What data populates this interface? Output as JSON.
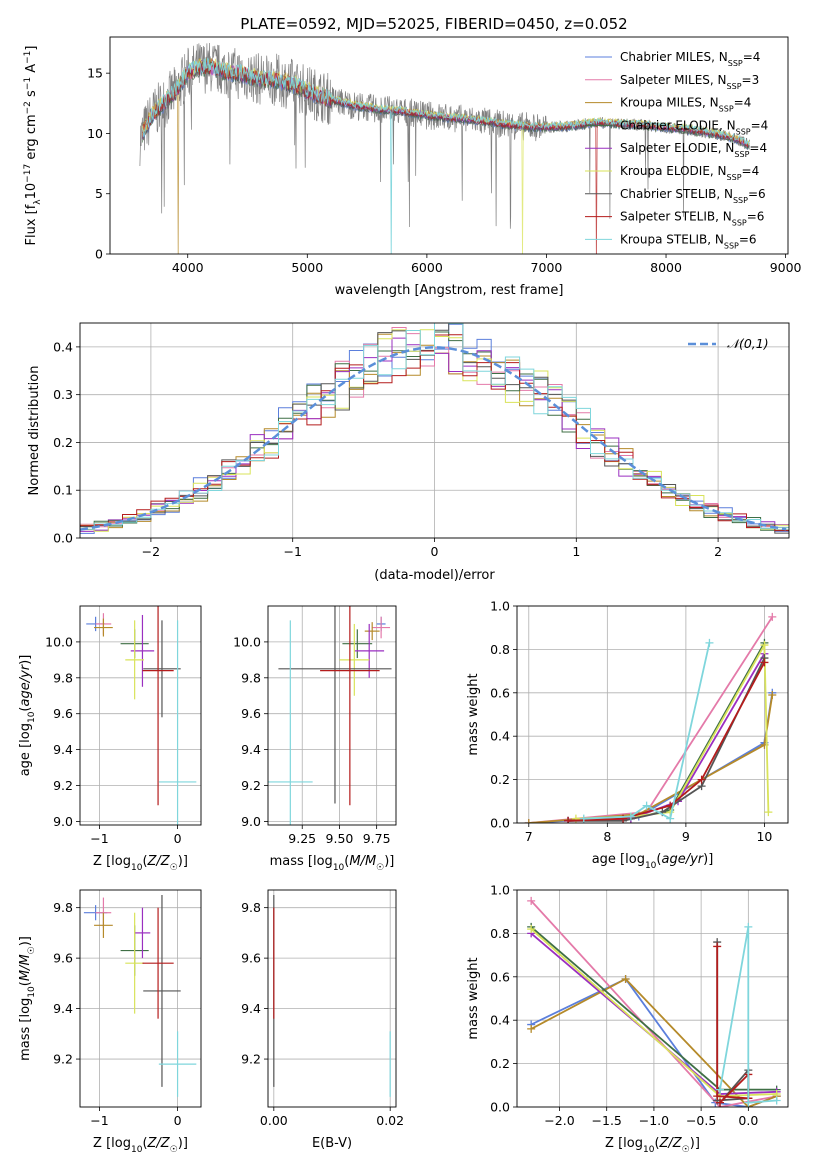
{
  "figure_title": "PLATE=0592, MJD=52025, FIBERID=0450, z=0.052",
  "models": [
    {
      "label": "Chabrier MILES",
      "nssp": "4",
      "color": "#5b7fdc"
    },
    {
      "label": "Salpeter MILES",
      "nssp": "3",
      "color": "#e47aa9"
    },
    {
      "label": "Kroupa MILES",
      "nssp": "4",
      "color": "#b58a2a"
    },
    {
      "label": "Chabrier ELODIE",
      "nssp": "4",
      "color": "#3f6f45"
    },
    {
      "label": "Salpeter ELODIE",
      "nssp": "4",
      "color": "#9a2fc0"
    },
    {
      "label": "Kroupa ELODIE",
      "nssp": "4",
      "color": "#d9e35a"
    },
    {
      "label": "Chabrier STELIB",
      "nssp": "6",
      "color": "#555555"
    },
    {
      "label": "Salpeter STELIB",
      "nssp": "6",
      "color": "#b41c1c"
    },
    {
      "label": "Kroupa STELIB",
      "nssp": "6",
      "color": "#7fd6dc"
    }
  ],
  "extra_colors": {
    "data_line": "#808080",
    "orange": "#e07a22",
    "green": "#8dc63f",
    "gaussian": "#5b8fd9"
  },
  "chart_data": [
    {
      "id": "spectrum",
      "type": "line",
      "xlabel": "wavelength [Angstrom, rest frame]",
      "ylabel": "Flux [f_λ10^-17 erg cm^-2 s^-1 A^-1]",
      "xlim": [
        3350,
        9020
      ],
      "ylim": [
        0,
        18
      ],
      "xticks": [
        "4000",
        "5000",
        "6000",
        "7000",
        "8000",
        "9000"
      ],
      "yticks": [
        "0",
        "5",
        "10",
        "15"
      ],
      "grid": false,
      "legend": "top-right",
      "continuum_x": [
        3600,
        3700,
        3800,
        3900,
        4000,
        4100,
        4200,
        4300,
        4400,
        4500,
        4600,
        4700,
        4800,
        4900,
        5000,
        5200,
        5400,
        5600,
        5800,
        6000,
        6200,
        6400,
        6600,
        6800,
        7000,
        7200,
        7400,
        7600,
        7800,
        8000,
        8200,
        8400,
        8600,
        8700
      ],
      "continuum_y": [
        9.5,
        11.5,
        12.5,
        13.5,
        15.0,
        15.5,
        15.5,
        15.2,
        15.0,
        14.8,
        14.5,
        14.5,
        14.3,
        14.0,
        13.5,
        12.8,
        12.3,
        12.0,
        11.8,
        11.5,
        11.3,
        11.1,
        10.8,
        10.6,
        10.5,
        10.6,
        10.9,
        10.8,
        10.7,
        10.5,
        10.3,
        10.0,
        9.5,
        9.0
      ]
    },
    {
      "id": "residuals",
      "type": "line",
      "xlabel": "(data-model)/error",
      "ylabel": "Normed distribution",
      "xlim": [
        -2.5,
        2.5
      ],
      "ylim": [
        0,
        0.45
      ],
      "xticks": [
        "−2",
        "−1",
        "0",
        "1",
        "2"
      ],
      "yticks": [
        "0.0",
        "0.1",
        "0.2",
        "0.3",
        "0.4"
      ],
      "grid": true,
      "legend": "top-right",
      "legend_label": "𝒩(0,1)",
      "gaussian": {
        "mu": 0,
        "sigma": 1
      }
    },
    {
      "id": "z-age",
      "type": "scatter",
      "xlabel": "Z [log10(Z/Z☉)]",
      "ylabel": "age [log10(age/yr)]",
      "xlim": [
        -1.25,
        0.3
      ],
      "ylim": [
        8.98,
        10.2
      ],
      "xticks": [
        "−1",
        "0"
      ],
      "yticks": [
        "9.0",
        "9.2",
        "9.4",
        "9.6",
        "9.8",
        "10.0"
      ],
      "points": [
        {
          "model": 0,
          "x": -1.05,
          "y": 10.1,
          "xerr": 0.12,
          "yerr": 0.04
        },
        {
          "model": 1,
          "x": -0.95,
          "y": 10.1,
          "xerr": 0.1,
          "yerr": 0.06
        },
        {
          "model": 2,
          "x": -0.95,
          "y": 10.08,
          "xerr": 0.12,
          "yerr": 0.05
        },
        {
          "model": 3,
          "x": -0.55,
          "y": 9.99,
          "xerr": 0.18,
          "yerr": 0.08
        },
        {
          "model": 4,
          "x": -0.45,
          "y": 9.95,
          "xerr": 0.15,
          "yerr": 0.2
        },
        {
          "model": 5,
          "x": -0.55,
          "y": 9.9,
          "xerr": 0.12,
          "yerr": 0.22
        },
        {
          "model": 6,
          "x": -0.2,
          "y": 9.85,
          "xerr": 0.24,
          "yerr": 0.27
        },
        {
          "model": 7,
          "x": -0.25,
          "y": 9.84,
          "xerr": 0.2,
          "yerr": 0.75
        },
        {
          "model": 8,
          "x": 0.0,
          "y": 9.22,
          "xerr": 0.24,
          "yerr": 0.9
        }
      ]
    },
    {
      "id": "mass-age",
      "type": "scatter",
      "xlabel": "mass [log10(M/M☉)]",
      "ylabel": "",
      "xlim": [
        9.02,
        9.88
      ],
      "ylim": [
        8.98,
        10.2
      ],
      "xticks": [
        "9.25",
        "9.50",
        "9.75"
      ],
      "yticks": [
        "9.0",
        "9.2",
        "9.4",
        "9.6",
        "9.8",
        "10.0"
      ],
      "points": [
        {
          "model": 0,
          "x": 9.78,
          "y": 10.1,
          "xerr": 0.03,
          "yerr": 0.04
        },
        {
          "model": 1,
          "x": 9.78,
          "y": 10.08,
          "xerr": 0.06,
          "yerr": 0.06
        },
        {
          "model": 2,
          "x": 9.72,
          "y": 10.06,
          "xerr": 0.05,
          "yerr": 0.05
        },
        {
          "model": 3,
          "x": 9.62,
          "y": 9.99,
          "xerr": 0.1,
          "yerr": 0.08
        },
        {
          "model": 4,
          "x": 9.7,
          "y": 9.95,
          "xerr": 0.1,
          "yerr": 0.15
        },
        {
          "model": 5,
          "x": 9.6,
          "y": 9.9,
          "xerr": 0.1,
          "yerr": 0.2
        },
        {
          "model": 6,
          "x": 9.47,
          "y": 9.85,
          "xerr": 0.38,
          "yerr": 0.75
        },
        {
          "model": 7,
          "x": 9.57,
          "y": 9.84,
          "xerr": 0.2,
          "yerr": 0.75
        },
        {
          "model": 8,
          "x": 9.17,
          "y": 9.22,
          "xerr": 0.15,
          "yerr": 0.9
        }
      ]
    },
    {
      "id": "age-weight",
      "type": "line",
      "xlabel": "age [log10(age/yr)]",
      "ylabel": "mass weight",
      "xlim": [
        6.85,
        10.3
      ],
      "ylim": [
        0,
        1.0
      ],
      "xticks": [
        "7",
        "8",
        "9",
        "10"
      ],
      "yticks": [
        "0.0",
        "0.2",
        "0.4",
        "0.6",
        "0.8",
        "1.0"
      ],
      "grid": true,
      "series": [
        {
          "model": 0,
          "x": [
            7.0,
            8.4,
            10.0,
            10.1
          ],
          "y": [
            0.0,
            0.03,
            0.37,
            0.6
          ]
        },
        {
          "model": 1,
          "x": [
            7.0,
            8.5,
            10.1
          ],
          "y": [
            0.0,
            0.05,
            0.95
          ]
        },
        {
          "model": 2,
          "x": [
            7.0,
            8.4,
            10.0,
            10.1
          ],
          "y": [
            0.0,
            0.04,
            0.36,
            0.59
          ]
        },
        {
          "model": 3,
          "x": [
            7.5,
            8.3,
            8.8,
            10.0
          ],
          "y": [
            0.01,
            0.02,
            0.06,
            0.83
          ]
        },
        {
          "model": 4,
          "x": [
            7.5,
            8.3,
            8.9,
            10.0
          ],
          "y": [
            0.01,
            0.02,
            0.1,
            0.78
          ]
        },
        {
          "model": 5,
          "x": [
            7.6,
            8.3,
            8.8,
            10.0,
            10.05
          ],
          "y": [
            0.02,
            0.03,
            0.05,
            0.82,
            0.05
          ]
        },
        {
          "model": 6,
          "x": [
            7.5,
            8.2,
            8.7,
            9.2,
            10.0
          ],
          "y": [
            0.01,
            0.01,
            0.05,
            0.17,
            0.76
          ]
        },
        {
          "model": 7,
          "x": [
            7.5,
            8.2,
            8.8,
            9.2,
            10.0
          ],
          "y": [
            0.01,
            0.02,
            0.08,
            0.2,
            0.74
          ]
        },
        {
          "model": 8,
          "x": [
            7.7,
            8.3,
            8.5,
            8.8,
            9.3
          ],
          "y": [
            0.02,
            0.03,
            0.08,
            0.02,
            0.83
          ]
        }
      ]
    },
    {
      "id": "z-mass",
      "type": "scatter",
      "xlabel": "Z [log10(Z/Z☉)]",
      "ylabel": "mass [log10(M/M☉)]",
      "xlim": [
        -1.25,
        0.3
      ],
      "ylim": [
        9.01,
        9.87
      ],
      "xticks": [
        "−1",
        "0"
      ],
      "yticks": [
        "9.2",
        "9.4",
        "9.6",
        "9.8"
      ],
      "points": [
        {
          "model": 0,
          "x": -1.05,
          "y": 9.78,
          "xerr": 0.15,
          "yerr": 0.03
        },
        {
          "model": 1,
          "x": -0.95,
          "y": 9.78,
          "xerr": 0.1,
          "yerr": 0.06
        },
        {
          "model": 2,
          "x": -0.95,
          "y": 9.73,
          "xerr": 0.12,
          "yerr": 0.05
        },
        {
          "model": 3,
          "x": -0.55,
          "y": 9.63,
          "xerr": 0.18,
          "yerr": 0.1
        },
        {
          "model": 4,
          "x": -0.45,
          "y": 9.7,
          "xerr": 0.1,
          "yerr": 0.1
        },
        {
          "model": 5,
          "x": -0.55,
          "y": 9.58,
          "xerr": 0.12,
          "yerr": 0.2
        },
        {
          "model": 6,
          "x": -0.2,
          "y": 9.47,
          "xerr": 0.24,
          "yerr": 0.38
        },
        {
          "model": 7,
          "x": -0.25,
          "y": 9.58,
          "xerr": 0.2,
          "yerr": 0.22
        },
        {
          "model": 8,
          "x": 0.0,
          "y": 9.18,
          "xerr": 0.24,
          "yerr": 0.13
        }
      ]
    },
    {
      "id": "ebv-mass",
      "type": "scatter",
      "xlabel": "E(B-V)",
      "ylabel": "",
      "xlim": [
        -0.001,
        0.021
      ],
      "ylim": [
        9.01,
        9.87
      ],
      "xticks": [
        "0.00",
        "0.02"
      ],
      "yticks": [
        "9.2",
        "9.4",
        "9.6",
        "9.8"
      ],
      "points": [
        {
          "model": 6,
          "x": 0.0,
          "y": 9.47,
          "xerr": 0,
          "yerr": 0.38
        },
        {
          "model": 7,
          "x": 0.0,
          "y": 9.58,
          "xerr": 0,
          "yerr": 0.22
        },
        {
          "model": 8,
          "x": 0.02,
          "y": 9.18,
          "xerr": 0,
          "yerr": 0.13
        }
      ]
    },
    {
      "id": "z-weight",
      "type": "line",
      "xlabel": "Z [log10(Z/Z☉)]",
      "ylabel": "mass weight",
      "xlim": [
        -2.45,
        0.42
      ],
      "ylim": [
        0,
        1.0
      ],
      "xticks": [
        "−2.0",
        "−1.5",
        "−1.0",
        "−0.5",
        "0.0"
      ],
      "yticks": [
        "0.0",
        "0.2",
        "0.4",
        "0.6",
        "0.8",
        "1.0"
      ],
      "grid": true,
      "series": [
        {
          "model": 0,
          "x": [
            -2.3,
            -1.3,
            -0.35,
            0.0,
            0.3
          ],
          "y": [
            0.38,
            0.59,
            0.02,
            0.0,
            0.05
          ]
        },
        {
          "model": 1,
          "x": [
            -2.3,
            -0.3,
            0.3
          ],
          "y": [
            0.95,
            0.0,
            0.05
          ]
        },
        {
          "model": 2,
          "x": [
            -2.3,
            -1.3,
            0.0,
            0.3
          ],
          "y": [
            0.36,
            0.59,
            0.0,
            0.05
          ]
        },
        {
          "model": 3,
          "x": [
            -2.3,
            -0.3,
            0.3
          ],
          "y": [
            0.83,
            0.08,
            0.08
          ]
        },
        {
          "model": 4,
          "x": [
            -2.3,
            -0.3,
            0.3
          ],
          "y": [
            0.8,
            0.06,
            0.07
          ]
        },
        {
          "model": 5,
          "x": [
            -2.3,
            -0.3,
            0.3
          ],
          "y": [
            0.82,
            0.05,
            0.06
          ]
        },
        {
          "model": 6,
          "x": [
            -0.33,
            -0.33,
            0.0,
            0.0,
            -0.3
          ],
          "y": [
            0.76,
            0.03,
            0.04,
            0.17,
            0.02
          ]
        },
        {
          "model": 7,
          "x": [
            -0.33,
            -0.33,
            0.0,
            0.0,
            -0.3
          ],
          "y": [
            0.74,
            0.05,
            0.04,
            0.15,
            0.02
          ]
        },
        {
          "model": 8,
          "x": [
            -0.3,
            0.0,
            0.0,
            0.3
          ],
          "y": [
            0.08,
            0.83,
            0.02,
            0.03
          ]
        }
      ]
    }
  ]
}
